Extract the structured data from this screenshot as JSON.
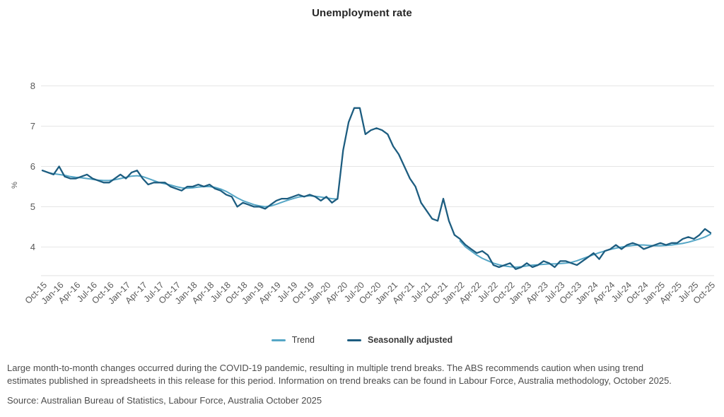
{
  "page": {
    "title": "Unemployment rate"
  },
  "notes": {
    "trend_break_note": "Large month-to-month changes occurred during the COVID-19 pandemic, resulting in multiple trend breaks. The ABS recommends caution when using trend estimates published in spreadsheets in this release for this period. Information on trend breaks can be found in Labour Force, Australia methodology, October 2025.",
    "source": "Source: Australian Bureau of Statistics, Labour Force, Australia October 2025"
  },
  "chart_data": {
    "type": "line",
    "title": "Unemployment rate",
    "xlabel": "",
    "ylabel": "%",
    "ylim": [
      3.3,
      8.2
    ],
    "yticks": [
      4,
      5,
      6,
      7,
      8
    ],
    "grid": "horizontal",
    "legend_position": "bottom",
    "x_tick_labels": [
      "Oct-15",
      "Jan-16",
      "Apr-16",
      "Jul-16",
      "Oct-16",
      "Jan-17",
      "Apr-17",
      "Jul-17",
      "Oct-17",
      "Jan-18",
      "Apr-18",
      "Jul-18",
      "Oct-18",
      "Jan-19",
      "Apr-19",
      "Jul-19",
      "Oct-19",
      "Jan-20",
      "Apr-20",
      "Jul-20",
      "Oct-20",
      "Jan-21",
      "Apr-21",
      "Jul-21",
      "Oct-21",
      "Jan-22",
      "Apr-22",
      "Jul-22",
      "Oct-22",
      "Jan-23",
      "Apr-23",
      "Jul-23",
      "Oct-23",
      "Jan-24",
      "Apr-24",
      "Jul-24",
      "Oct-24",
      "Jan-25",
      "Apr-25",
      "Jul-25",
      "Oct-25"
    ],
    "months": [
      "Oct-15",
      "Nov-15",
      "Dec-15",
      "Jan-16",
      "Feb-16",
      "Mar-16",
      "Apr-16",
      "May-16",
      "Jun-16",
      "Jul-16",
      "Aug-16",
      "Sep-16",
      "Oct-16",
      "Nov-16",
      "Dec-16",
      "Jan-17",
      "Feb-17",
      "Mar-17",
      "Apr-17",
      "May-17",
      "Jun-17",
      "Jul-17",
      "Aug-17",
      "Sep-17",
      "Oct-17",
      "Nov-17",
      "Dec-17",
      "Jan-18",
      "Feb-18",
      "Mar-18",
      "Apr-18",
      "May-18",
      "Jun-18",
      "Jul-18",
      "Aug-18",
      "Sep-18",
      "Oct-18",
      "Nov-18",
      "Dec-18",
      "Jan-19",
      "Feb-19",
      "Mar-19",
      "Apr-19",
      "May-19",
      "Jun-19",
      "Jul-19",
      "Aug-19",
      "Sep-19",
      "Oct-19",
      "Nov-19",
      "Dec-19",
      "Jan-20",
      "Feb-20",
      "Mar-20",
      "Apr-20",
      "May-20",
      "Jun-20",
      "Jul-20",
      "Aug-20",
      "Sep-20",
      "Oct-20",
      "Nov-20",
      "Dec-20",
      "Jan-21",
      "Feb-21",
      "Mar-21",
      "Apr-21",
      "May-21",
      "Jun-21",
      "Jul-21",
      "Aug-21",
      "Sep-21",
      "Oct-21",
      "Nov-21",
      "Dec-21",
      "Jan-22",
      "Feb-22",
      "Mar-22",
      "Apr-22",
      "May-22",
      "Jun-22",
      "Jul-22",
      "Aug-22",
      "Sep-22",
      "Oct-22",
      "Nov-22",
      "Dec-22",
      "Jan-23",
      "Feb-23",
      "Mar-23",
      "Apr-23",
      "May-23",
      "Jun-23",
      "Jul-23",
      "Aug-23",
      "Sep-23",
      "Oct-23",
      "Nov-23",
      "Dec-23",
      "Jan-24",
      "Feb-24",
      "Mar-24",
      "Apr-24",
      "May-24",
      "Jun-24",
      "Jul-24",
      "Aug-24",
      "Sep-24",
      "Oct-24",
      "Nov-24",
      "Dec-24",
      "Jan-25",
      "Feb-25",
      "Mar-25",
      "Apr-25",
      "May-25",
      "Jun-25",
      "Jul-25",
      "Aug-25",
      "Sep-25",
      "Oct-25"
    ],
    "series": [
      {
        "name": "Trend",
        "color": "#55a6c6",
        "values": [
          5.9,
          5.85,
          5.82,
          5.8,
          5.78,
          5.75,
          5.73,
          5.72,
          5.7,
          5.68,
          5.66,
          5.65,
          5.65,
          5.67,
          5.7,
          5.73,
          5.76,
          5.77,
          5.75,
          5.7,
          5.65,
          5.6,
          5.57,
          5.54,
          5.5,
          5.47,
          5.46,
          5.47,
          5.49,
          5.5,
          5.5,
          5.48,
          5.44,
          5.38,
          5.3,
          5.22,
          5.15,
          5.1,
          5.05,
          5.02,
          5.0,
          5.02,
          5.06,
          5.11,
          5.16,
          5.2,
          5.24,
          5.26,
          5.27,
          5.26,
          5.24,
          5.22,
          5.2,
          5.19,
          null,
          null,
          null,
          null,
          null,
          null,
          null,
          null,
          null,
          null,
          null,
          null,
          null,
          null,
          null,
          null,
          null,
          null,
          null,
          null,
          null,
          4.15,
          4.0,
          3.9,
          3.8,
          3.72,
          3.66,
          3.6,
          3.56,
          3.53,
          3.51,
          3.5,
          3.51,
          3.53,
          3.55,
          3.56,
          3.57,
          3.58,
          3.58,
          3.59,
          3.6,
          3.62,
          3.66,
          3.71,
          3.76,
          3.81,
          3.86,
          3.9,
          3.94,
          3.97,
          4.0,
          4.02,
          4.04,
          4.05,
          4.05,
          4.04,
          4.03,
          4.03,
          4.04,
          4.05,
          4.07,
          4.09,
          4.12,
          4.16,
          4.2,
          4.25,
          4.32
        ]
      },
      {
        "name": "Seasonally adjusted",
        "color": "#1d5d80",
        "values": [
          5.9,
          5.85,
          5.8,
          6.0,
          5.75,
          5.7,
          5.7,
          5.75,
          5.8,
          5.7,
          5.65,
          5.6,
          5.6,
          5.7,
          5.8,
          5.7,
          5.85,
          5.9,
          5.7,
          5.55,
          5.6,
          5.6,
          5.6,
          5.5,
          5.45,
          5.4,
          5.5,
          5.5,
          5.55,
          5.5,
          5.55,
          5.45,
          5.4,
          5.3,
          5.25,
          5.0,
          5.1,
          5.05,
          5.0,
          5.0,
          4.95,
          5.05,
          5.15,
          5.2,
          5.2,
          5.25,
          5.3,
          5.25,
          5.3,
          5.25,
          5.15,
          5.25,
          5.1,
          5.2,
          6.4,
          7.1,
          7.45,
          7.45,
          6.8,
          6.9,
          6.95,
          6.9,
          6.8,
          6.5,
          6.3,
          6.0,
          5.7,
          5.5,
          5.1,
          4.9,
          4.7,
          4.65,
          5.2,
          4.65,
          4.3,
          4.2,
          4.05,
          3.95,
          3.85,
          3.9,
          3.8,
          3.55,
          3.5,
          3.55,
          3.6,
          3.45,
          3.5,
          3.6,
          3.5,
          3.55,
          3.65,
          3.6,
          3.5,
          3.65,
          3.65,
          3.6,
          3.55,
          3.65,
          3.75,
          3.85,
          3.7,
          3.9,
          3.95,
          4.05,
          3.95,
          4.05,
          4.1,
          4.05,
          3.95,
          4.0,
          4.05,
          4.1,
          4.05,
          4.1,
          4.1,
          4.2,
          4.25,
          4.2,
          4.3,
          4.45,
          4.35
        ]
      }
    ]
  }
}
